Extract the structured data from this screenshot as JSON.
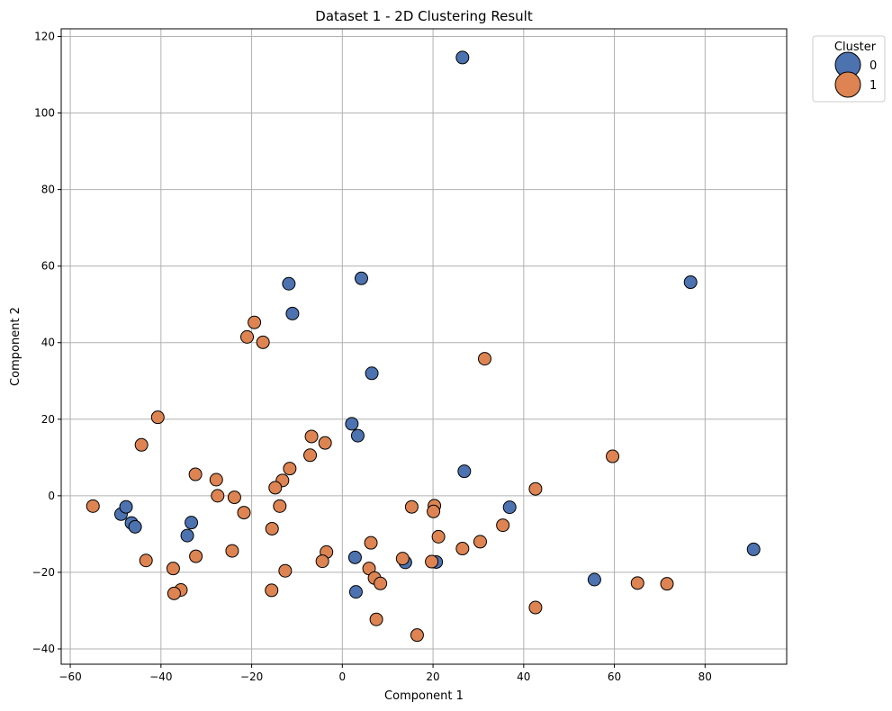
{
  "chart_data": {
    "type": "scatter",
    "title": "Dataset 1 - 2D Clustering Result",
    "xlabel": "Component 1",
    "ylabel": "Component 2",
    "xlim": [
      -62,
      98
    ],
    "ylim": [
      -44,
      122
    ],
    "xticks": [
      -60,
      -40,
      -20,
      0,
      20,
      40,
      60,
      80
    ],
    "yticks": [
      -40,
      -20,
      0,
      20,
      40,
      60,
      80,
      100,
      120
    ],
    "grid": true,
    "legend": {
      "title": "Cluster",
      "placement": "outside-top-right"
    },
    "series": [
      {
        "name": "0",
        "color": "#4c72b0",
        "points": [
          [
            26.5,
            114.5
          ],
          [
            4.2,
            56.8
          ],
          [
            -11.8,
            55.4
          ],
          [
            76.8,
            55.8
          ],
          [
            -11.0,
            47.6
          ],
          [
            6.5,
            32.0
          ],
          [
            2.1,
            18.8
          ],
          [
            3.4,
            15.7
          ],
          [
            26.9,
            6.4
          ],
          [
            -48.8,
            -4.8
          ],
          [
            -47.7,
            -2.9
          ],
          [
            -46.5,
            -7.1
          ],
          [
            -45.7,
            -8.1
          ],
          [
            -33.3,
            -7.0
          ],
          [
            -34.2,
            -10.4
          ],
          [
            36.9,
            -3.0
          ],
          [
            90.7,
            -14.0
          ],
          [
            2.8,
            -16.1
          ],
          [
            13.9,
            -17.4
          ],
          [
            20.7,
            -17.3
          ],
          [
            55.6,
            -21.9
          ],
          [
            3.0,
            -25.1
          ]
        ]
      },
      {
        "name": "1",
        "color": "#dd8452",
        "points": [
          [
            -19.4,
            45.3
          ],
          [
            -21.0,
            41.5
          ],
          [
            -17.5,
            40.1
          ],
          [
            31.4,
            35.8
          ],
          [
            -40.7,
            20.5
          ],
          [
            -44.3,
            13.3
          ],
          [
            -6.8,
            15.5
          ],
          [
            -3.8,
            13.8
          ],
          [
            -7.1,
            10.6
          ],
          [
            59.6,
            10.3
          ],
          [
            -11.6,
            7.1
          ],
          [
            -32.4,
            5.6
          ],
          [
            -27.8,
            4.2
          ],
          [
            -13.2,
            4.0
          ],
          [
            -14.8,
            2.1
          ],
          [
            42.6,
            1.8
          ],
          [
            -27.5,
            0.0
          ],
          [
            -23.8,
            -0.4
          ],
          [
            -55.0,
            -2.7
          ],
          [
            -13.8,
            -2.7
          ],
          [
            20.3,
            -2.6
          ],
          [
            15.3,
            -2.9
          ],
          [
            20.1,
            -4.1
          ],
          [
            -21.7,
            -4.4
          ],
          [
            -15.5,
            -8.6
          ],
          [
            35.4,
            -7.7
          ],
          [
            21.2,
            -10.7
          ],
          [
            30.4,
            -12.0
          ],
          [
            6.3,
            -12.3
          ],
          [
            26.5,
            -13.8
          ],
          [
            -24.3,
            -14.4
          ],
          [
            -3.5,
            -14.7
          ],
          [
            -32.3,
            -15.8
          ],
          [
            13.3,
            -16.4
          ],
          [
            -43.3,
            -16.9
          ],
          [
            -4.4,
            -17.1
          ],
          [
            19.7,
            -17.2
          ],
          [
            5.9,
            -19.0
          ],
          [
            -37.3,
            -19.0
          ],
          [
            -12.6,
            -19.6
          ],
          [
            7.1,
            -21.5
          ],
          [
            8.4,
            -22.9
          ],
          [
            65.1,
            -22.8
          ],
          [
            71.6,
            -23.0
          ],
          [
            -35.6,
            -24.6
          ],
          [
            -15.6,
            -24.7
          ],
          [
            -37.1,
            -25.5
          ],
          [
            42.6,
            -29.2
          ],
          [
            7.5,
            -32.3
          ],
          [
            16.5,
            -36.4
          ]
        ]
      }
    ]
  }
}
